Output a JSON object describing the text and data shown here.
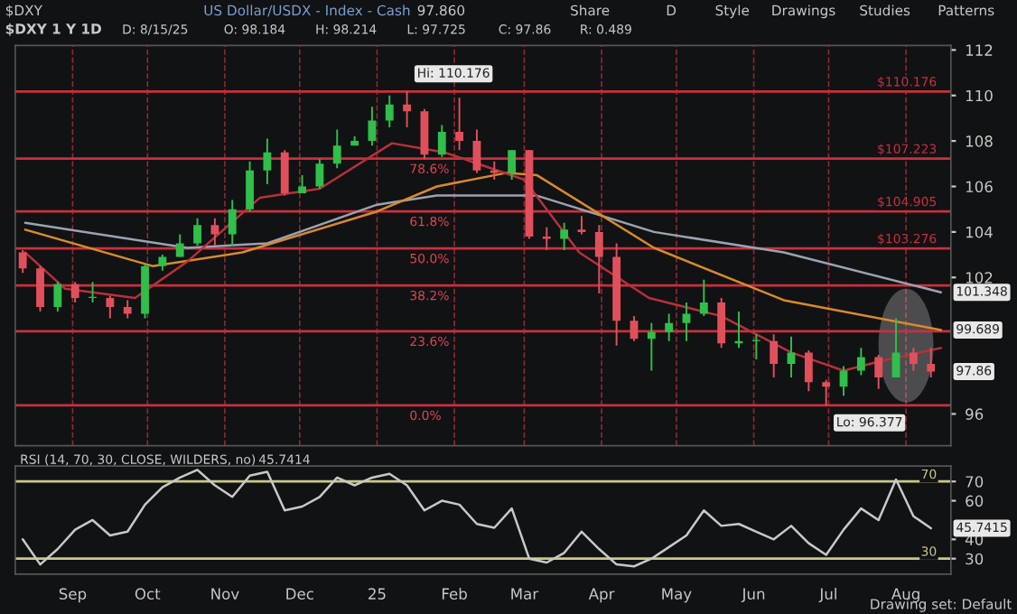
{
  "chart_data": [
    {
      "type": "candlestick",
      "title": "$DXY 1 Y 1D",
      "subtitle": "US Dollar/USDX - Index - Cash",
      "x": [
        "2024-08-12",
        "2024-08-19",
        "2024-08-26",
        "2024-09-02",
        "2024-09-09",
        "2024-09-16",
        "2024-09-23",
        "2024-09-30",
        "2024-10-07",
        "2024-10-14",
        "2024-10-21",
        "2024-10-28",
        "2024-11-04",
        "2024-11-11",
        "2024-11-18",
        "2024-11-25",
        "2024-12-02",
        "2024-12-09",
        "2024-12-16",
        "2024-12-23",
        "2024-12-30",
        "2025-01-06",
        "2025-01-13",
        "2025-01-20",
        "2025-01-27",
        "2025-02-03",
        "2025-02-10",
        "2025-02-17",
        "2025-02-24",
        "2025-03-03",
        "2025-03-10",
        "2025-03-17",
        "2025-03-24",
        "2025-03-31",
        "2025-04-07",
        "2025-04-14",
        "2025-04-21",
        "2025-04-28",
        "2025-05-05",
        "2025-05-12",
        "2025-05-19",
        "2025-05-26",
        "2025-06-02",
        "2025-06-09",
        "2025-06-16",
        "2025-06-23",
        "2025-06-30",
        "2025-07-07",
        "2025-07-14",
        "2025-07-21",
        "2025-07-28",
        "2025-08-04",
        "2025-08-11"
      ],
      "ohlc": [
        [
          103.1,
          103.2,
          102.2,
          102.4
        ],
        [
          102.4,
          102.5,
          100.5,
          100.7
        ],
        [
          100.7,
          101.8,
          100.5,
          101.7
        ],
        [
          101.7,
          101.8,
          100.9,
          101.1
        ],
        [
          101.1,
          101.8,
          100.9,
          101.1
        ],
        [
          101.1,
          101.2,
          100.2,
          100.7
        ],
        [
          100.7,
          101.0,
          100.2,
          100.4
        ],
        [
          100.4,
          102.6,
          100.2,
          102.5
        ],
        [
          102.5,
          103.0,
          102.3,
          102.9
        ],
        [
          102.9,
          103.9,
          102.9,
          103.5
        ],
        [
          103.5,
          104.6,
          103.4,
          104.3
        ],
        [
          104.3,
          104.6,
          103.4,
          103.9
        ],
        [
          103.9,
          105.4,
          103.4,
          105.0
        ],
        [
          105.0,
          107.1,
          104.9,
          106.7
        ],
        [
          106.7,
          108.1,
          106.1,
          107.5
        ],
        [
          107.5,
          107.6,
          105.6,
          105.7
        ],
        [
          105.7,
          106.5,
          105.7,
          106.0
        ],
        [
          106.0,
          107.2,
          105.9,
          107.0
        ],
        [
          107.0,
          108.5,
          106.8,
          107.8
        ],
        [
          107.8,
          108.2,
          107.8,
          108.0
        ],
        [
          108.0,
          109.5,
          107.8,
          108.9
        ],
        [
          108.9,
          110.0,
          108.6,
          109.6
        ],
        [
          109.6,
          110.176,
          108.6,
          109.3
        ],
        [
          109.3,
          109.4,
          107.2,
          107.4
        ],
        [
          107.4,
          108.7,
          107.3,
          108.4
        ],
        [
          108.4,
          109.9,
          107.6,
          108.0
        ],
        [
          108.0,
          108.5,
          106.6,
          106.7
        ],
        [
          106.7,
          107.1,
          106.3,
          106.6
        ],
        [
          106.6,
          107.6,
          106.3,
          107.6
        ],
        [
          107.6,
          107.6,
          103.7,
          103.8
        ],
        [
          103.8,
          104.2,
          103.2,
          103.7
        ],
        [
          103.7,
          104.4,
          103.2,
          104.1
        ],
        [
          104.1,
          104.7,
          103.9,
          104.0
        ],
        [
          104.0,
          104.3,
          101.3,
          102.9
        ],
        [
          102.9,
          103.5,
          99.0,
          100.1
        ],
        [
          100.1,
          100.3,
          99.2,
          99.3
        ],
        [
          99.3,
          100.0,
          97.9,
          99.6
        ],
        [
          99.6,
          100.4,
          99.2,
          100.0
        ],
        [
          100.0,
          100.9,
          99.2,
          100.4
        ],
        [
          100.4,
          101.9,
          100.3,
          100.9
        ],
        [
          100.9,
          101.1,
          98.9,
          99.1
        ],
        [
          99.1,
          100.5,
          98.9,
          99.2
        ],
        [
          99.2,
          99.5,
          98.4,
          99.2
        ],
        [
          99.2,
          99.5,
          97.6,
          98.2
        ],
        [
          98.2,
          99.4,
          97.6,
          98.7
        ],
        [
          98.7,
          98.8,
          97.0,
          97.4
        ],
        [
          97.4,
          97.5,
          96.377,
          97.2
        ],
        [
          97.2,
          98.1,
          96.8,
          97.9
        ],
        [
          97.9,
          98.9,
          97.7,
          98.5
        ],
        [
          98.5,
          98.6,
          97.1,
          97.6
        ],
        [
          97.6,
          100.2,
          97.6,
          98.7
        ],
        [
          98.7,
          98.9,
          97.9,
          98.2
        ],
        [
          98.2,
          98.9,
          97.6,
          97.86
        ]
      ],
      "series": [
        {
          "type": "line",
          "color": "#9aa3b0",
          "x": [
            "2024-08-13",
            "2024-10-17",
            "2024-11-18",
            "2025-01-01",
            "2025-01-25",
            "2025-03-06",
            "2025-04-22",
            "2025-06-13",
            "2025-08-15"
          ],
          "values": [
            104.4,
            103.3,
            103.5,
            105.2,
            105.6,
            105.6,
            104.0,
            103.1,
            101.348
          ]
        },
        {
          "type": "line",
          "color": "#d98a2b",
          "x": [
            "2024-08-13",
            "2024-10-03",
            "2024-11-08",
            "2025-01-01",
            "2025-01-25",
            "2025-02-22",
            "2025-03-06",
            "2025-04-22",
            "2025-06-13",
            "2025-08-15"
          ],
          "values": [
            104.1,
            102.5,
            103.1,
            104.9,
            106.0,
            106.6,
            106.5,
            103.3,
            101.0,
            99.689
          ]
        },
        {
          "type": "line",
          "color": "#b8303a",
          "x": [
            "2024-08-13",
            "2024-08-29",
            "2024-09-26",
            "2024-10-17",
            "2024-11-15",
            "2024-12-09",
            "2025-01-07",
            "2025-01-28",
            "2025-03-01",
            "2025-03-23",
            "2025-04-20",
            "2025-05-19",
            "2025-06-16",
            "2025-07-07",
            "2025-07-21",
            "2025-08-15"
          ],
          "values": [
            103.1,
            101.5,
            101.1,
            102.7,
            105.5,
            105.9,
            107.9,
            107.5,
            106.3,
            103.1,
            101.1,
            100.3,
            98.7,
            97.9,
            98.3,
            98.9
          ]
        }
      ],
      "xlim": [
        "2024-08-09",
        "2025-08-19"
      ],
      "xticks": [
        {
          "value": "2024-09-01",
          "label": null
        },
        {
          "value": "2024-10-01",
          "label": null
        },
        {
          "value": "2024-11-01",
          "label": null
        },
        {
          "value": "2024-12-01",
          "label": null
        },
        {
          "value": "2025-01-01",
          "label": null
        },
        {
          "value": "2025-02-01",
          "label": null
        },
        {
          "value": "2025-03-01",
          "label": null
        },
        {
          "value": "2025-04-01",
          "label": null
        },
        {
          "value": "2025-05-01",
          "label": null
        },
        {
          "value": "2025-06-01",
          "label": null
        },
        {
          "value": "2025-07-01",
          "label": null
        },
        {
          "value": "2025-08-01",
          "label": null
        }
      ],
      "ylim": [
        94.6,
        112.2
      ],
      "yticks": [
        96,
        102,
        104,
        106,
        108,
        110,
        112
      ],
      "tick_labels": "y",
      "grid": "x",
      "ref_lines": [
        {
          "axis": "y",
          "value": 110.176,
          "label": "$110.176",
          "color": "#c8303c"
        },
        {
          "axis": "y",
          "value": 107.223,
          "label": "$107.223",
          "color": "#c8303c"
        },
        {
          "axis": "y",
          "value": 104.905,
          "label": "$104.905",
          "color": "#c8303c"
        },
        {
          "axis": "y",
          "value": 103.276,
          "label": "$103.276",
          "color": "#c8303c"
        },
        {
          "axis": "y",
          "value": 101.648,
          "color": "#c8303c"
        },
        {
          "axis": "y",
          "value": 99.633,
          "color": "#c8303c"
        },
        {
          "axis": "y",
          "value": 96.377,
          "color": "#c8303c"
        }
      ],
      "annotations": [
        "$DXY",
        "97.860",
        "Share",
        "D",
        "Style",
        "Drawings",
        "Studies",
        "Patterns",
        "D: 8/15/25",
        "O: 98.184",
        "H: 98.214",
        "L: 97.725",
        "C: 97.86",
        "R: 0.489",
        "Drawing set: Default",
        {
          "text": "Hi: 110.176",
          "x": "2025-01-13",
          "y": 110.176
        },
        {
          "text": "Lo: 96.377",
          "x": "2025-06-30",
          "y": 96.377
        },
        {
          "text": "78.6%",
          "x": "2025-01-14",
          "y": 107.223
        },
        {
          "text": "61.8%",
          "x": "2025-01-14",
          "y": 104.905
        },
        {
          "text": "50.0%",
          "x": "2025-01-14",
          "y": 103.276
        },
        {
          "text": "38.2%",
          "x": "2025-01-14",
          "y": 101.648
        },
        {
          "text": "23.6%",
          "x": "2025-01-14",
          "y": 99.633
        },
        {
          "text": "0.0%",
          "x": "2025-01-14",
          "y": 96.377
        },
        {
          "text": "101.348",
          "x": "2025-08-15",
          "y": 101.348
        },
        {
          "text": "99.689",
          "x": "2025-08-15",
          "y": 99.689
        },
        {
          "text": "97.86",
          "x": "2025-08-15",
          "y": 97.86
        }
      ]
    },
    {
      "type": "line",
      "title": "RSI (14, 70, 30, CLOSE, WILDERS, no)",
      "x": [
        "2024-08-12",
        "2024-08-19",
        "2024-08-26",
        "2024-09-02",
        "2024-09-09",
        "2024-09-16",
        "2024-09-23",
        "2024-09-30",
        "2024-10-07",
        "2024-10-14",
        "2024-10-21",
        "2024-10-28",
        "2024-11-04",
        "2024-11-11",
        "2024-11-18",
        "2024-11-25",
        "2024-12-02",
        "2024-12-09",
        "2024-12-16",
        "2024-12-23",
        "2024-12-30",
        "2025-01-06",
        "2025-01-13",
        "2025-01-20",
        "2025-01-27",
        "2025-02-03",
        "2025-02-10",
        "2025-02-17",
        "2025-02-24",
        "2025-03-03",
        "2025-03-10",
        "2025-03-17",
        "2025-03-24",
        "2025-03-31",
        "2025-04-07",
        "2025-04-14",
        "2025-04-21",
        "2025-04-28",
        "2025-05-05",
        "2025-05-12",
        "2025-05-19",
        "2025-05-26",
        "2025-06-02",
        "2025-06-09",
        "2025-06-16",
        "2025-06-23",
        "2025-06-30",
        "2025-07-07",
        "2025-07-14",
        "2025-07-21",
        "2025-07-28",
        "2025-08-04",
        "2025-08-11"
      ],
      "series": [
        {
          "color": "#c8c8c8",
          "values": [
            40,
            27,
            35,
            45,
            50,
            42,
            44,
            58,
            67,
            72,
            76,
            68,
            62,
            73,
            75,
            55,
            57,
            62,
            72,
            68,
            72,
            74,
            68,
            55,
            60,
            58,
            48,
            46,
            56,
            30,
            28,
            33,
            44,
            35,
            27,
            26,
            30,
            36,
            42,
            55,
            47,
            48,
            44,
            40,
            47,
            38,
            32,
            45,
            56,
            50,
            71,
            52,
            45.7414
          ]
        }
      ],
      "xlim": [
        "2024-08-09",
        "2025-08-19"
      ],
      "xticks": [
        {
          "value": "2024-09-01",
          "label": "Sep"
        },
        {
          "value": "2024-10-01",
          "label": "Oct"
        },
        {
          "value": "2024-11-01",
          "label": "Nov"
        },
        {
          "value": "2024-12-01",
          "label": "Dec"
        },
        {
          "value": "2025-01-01",
          "label": "25"
        },
        {
          "value": "2025-02-01",
          "label": "Feb"
        },
        {
          "value": "2025-03-01",
          "label": "Mar"
        },
        {
          "value": "2025-04-01",
          "label": "Apr"
        },
        {
          "value": "2025-05-01",
          "label": "May"
        },
        {
          "value": "2025-06-01",
          "label": "Jun"
        },
        {
          "value": "2025-07-01",
          "label": "Jul"
        },
        {
          "value": "2025-08-01",
          "label": "Aug"
        }
      ],
      "ylim": [
        22,
        78
      ],
      "yticks": [
        30,
        40,
        60,
        70
      ],
      "ref_lines": [
        {
          "axis": "y",
          "value": 70,
          "label": "70",
          "color": "#c9c98a"
        },
        {
          "axis": "y",
          "value": 30,
          "label": "30",
          "color": "#c9c98a"
        }
      ],
      "annotations": [
        "45.7414",
        "45.7415"
      ]
    }
  ]
}
